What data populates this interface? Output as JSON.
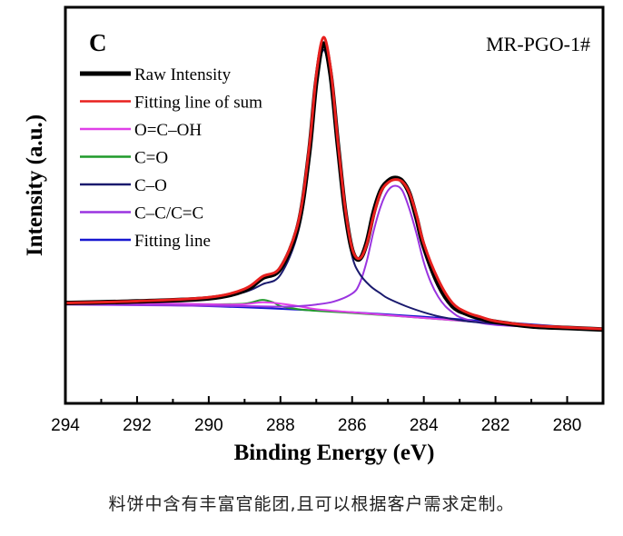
{
  "chart_data": {
    "type": "line",
    "panel_label": "C",
    "sample_label": "MR-PGO-1#",
    "xlabel": "Binding Energy (eV)",
    "ylabel": "Intensity (a.u.)",
    "x_reversed": true,
    "xlim": [
      294,
      279
    ],
    "ylim": [
      0,
      1
    ],
    "xticks": [
      "294",
      "292",
      "290",
      "288",
      "286",
      "284",
      "282",
      "280"
    ],
    "xtick_values": [
      294,
      292,
      290,
      288,
      286,
      284,
      282,
      280
    ],
    "legend_position": "top-left",
    "series": [
      {
        "name": "Raw Intensity",
        "color": "#000000",
        "x": [
          294,
          292,
          290,
          289,
          288.5,
          288,
          287.5,
          287.2,
          287.0,
          286.8,
          286.6,
          286.4,
          286.2,
          286.0,
          285.8,
          285.6,
          285.4,
          285.2,
          285.0,
          284.8,
          284.6,
          284.4,
          284.2,
          284.0,
          283.6,
          283.2,
          282.8,
          282.4,
          282,
          281,
          280,
          279
        ],
        "y": [
          0.17,
          0.175,
          0.185,
          0.21,
          0.25,
          0.28,
          0.42,
          0.65,
          0.88,
          1.0,
          0.9,
          0.68,
          0.47,
          0.34,
          0.31,
          0.36,
          0.46,
          0.53,
          0.56,
          0.57,
          0.56,
          0.52,
          0.44,
          0.35,
          0.23,
          0.16,
          0.135,
          0.12,
          0.11,
          0.095,
          0.09,
          0.085
        ]
      },
      {
        "name": "Fitting line of sum",
        "color": "#e8201e",
        "x": [
          294,
          292,
          290,
          289,
          288.5,
          288,
          287.5,
          287.2,
          287.0,
          286.8,
          286.6,
          286.4,
          286.2,
          286.0,
          285.8,
          285.6,
          285.4,
          285.2,
          285.0,
          284.8,
          284.6,
          284.4,
          284.2,
          284.0,
          283.6,
          283.2,
          282.8,
          282.4,
          282,
          281,
          280,
          279
        ],
        "y": [
          0.17,
          0.176,
          0.188,
          0.215,
          0.255,
          0.285,
          0.43,
          0.665,
          0.9,
          1.02,
          0.92,
          0.69,
          0.48,
          0.345,
          0.312,
          0.355,
          0.45,
          0.525,
          0.555,
          0.565,
          0.558,
          0.522,
          0.45,
          0.36,
          0.245,
          0.17,
          0.14,
          0.125,
          0.112,
          0.098,
          0.092,
          0.087
        ]
      },
      {
        "name": "O=C–OH",
        "color": "#e040e8",
        "x": [
          294,
          291,
          290,
          289.5,
          289,
          288.5,
          288,
          287.5,
          287,
          286,
          284,
          282,
          280,
          279
        ],
        "y": [
          0.17,
          0.168,
          0.166,
          0.165,
          0.166,
          0.172,
          0.168,
          0.16,
          0.15,
          0.14,
          0.122,
          0.105,
          0.09,
          0.085
        ]
      },
      {
        "name": "C=O",
        "color": "#1f9a2a",
        "x": [
          294,
          291,
          290,
          289.5,
          289,
          288.8,
          288.5,
          288.2,
          288,
          287.5,
          287,
          286,
          284,
          282,
          280,
          279
        ],
        "y": [
          0.17,
          0.168,
          0.166,
          0.166,
          0.168,
          0.172,
          0.18,
          0.172,
          0.16,
          0.15,
          0.145,
          0.138,
          0.122,
          0.105,
          0.09,
          0.085
        ]
      },
      {
        "name": "C–O",
        "color": "#1a1a6e",
        "x": [
          294,
          292,
          290,
          289,
          288.5,
          288,
          287.5,
          287.2,
          287.0,
          286.8,
          286.6,
          286.4,
          286.2,
          286.0,
          285.8,
          285.5,
          285.2,
          285.0,
          284.5,
          284.0,
          283.5,
          283.0,
          282.5,
          282,
          281,
          280,
          279
        ],
        "y": [
          0.17,
          0.175,
          0.185,
          0.205,
          0.23,
          0.26,
          0.4,
          0.62,
          0.86,
          0.98,
          0.88,
          0.66,
          0.45,
          0.32,
          0.265,
          0.225,
          0.2,
          0.185,
          0.16,
          0.14,
          0.125,
          0.115,
          0.108,
          0.104,
          0.097,
          0.092,
          0.088
        ]
      },
      {
        "name": "C–C/C=C",
        "color": "#9a34e0",
        "x": [
          294,
          289,
          288,
          287.5,
          287,
          286.5,
          286,
          285.8,
          285.6,
          285.4,
          285.2,
          285.0,
          284.8,
          284.6,
          284.4,
          284.2,
          284.0,
          283.8,
          283.6,
          283.4,
          283.2,
          283.0,
          282.5,
          282,
          281,
          280,
          279
        ],
        "y": [
          0.165,
          0.16,
          0.158,
          0.16,
          0.165,
          0.175,
          0.2,
          0.23,
          0.3,
          0.4,
          0.48,
          0.53,
          0.545,
          0.53,
          0.47,
          0.39,
          0.3,
          0.235,
          0.19,
          0.16,
          0.14,
          0.125,
          0.108,
          0.1,
          0.094,
          0.09,
          0.087
        ]
      },
      {
        "name": "Fitting line",
        "color": "#1717d0",
        "x": [
          294,
          290,
          286,
          282,
          279
        ],
        "y": [
          0.168,
          0.16,
          0.14,
          0.11,
          0.085
        ]
      }
    ]
  },
  "caption": "料饼中含有丰富官能团,且可以根据客户需求定制。"
}
